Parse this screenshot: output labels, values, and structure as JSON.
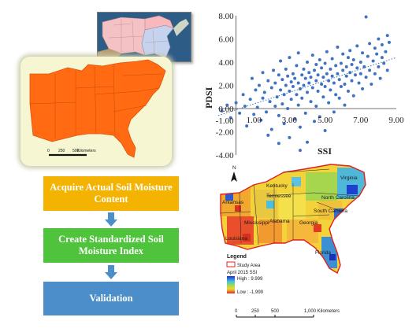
{
  "flow": {
    "step1": "Acquire Actual Soil Moisture Content",
    "step2": "Create Standardized Soil Moisture Index",
    "step3": "Validation",
    "colors": {
      "step1": "#f4b300",
      "step2": "#50c33c",
      "step3": "#4b8ec9",
      "arrow": "#4b8ec9"
    }
  },
  "region_map": {
    "scale_labels": [
      "0",
      "250",
      "500"
    ],
    "scale_unit": "Kilometers",
    "fill_color": "#ff6a12"
  },
  "ssi_map": {
    "state_labels": [
      "Kentucky",
      "Virginia",
      "Tennessee",
      "North Carolina",
      "Arkansas",
      "Mississippi",
      "Alabama",
      "Georgia",
      "South Carolina",
      "Louisiana",
      "Florida"
    ],
    "north_label": "N",
    "legend": {
      "title": "Legend",
      "study_area": "Study Area",
      "ssi_title": "April 2015 SSI",
      "high": "High : 9.999",
      "low": "Low : -1.999"
    },
    "scale": {
      "labels": [
        "0",
        "250",
        "500"
      ],
      "end": "1,000 Kilometers"
    }
  },
  "chart_data": {
    "type": "scatter",
    "xlabel": "SSI",
    "ylabel": "PDSI",
    "xlim": [
      -1.0,
      9.0
    ],
    "ylim": [
      -4.0,
      8.0
    ],
    "x_ticks": [
      "1.00",
      "3.00",
      "5.00",
      "7.00",
      "9.00"
    ],
    "x_tick_values": [
      1,
      3,
      5,
      7,
      9
    ],
    "y_ticks": [
      "8.00",
      "6.00",
      "4.00",
      "2.00",
      "0.00",
      "-1.00",
      "-2.00",
      "-4.00"
    ],
    "y_tick_values": [
      8,
      6,
      4,
      2,
      0,
      -1,
      -2,
      -4
    ],
    "trendline": {
      "style": "dotted",
      "x": [
        -1.0,
        9.0
      ],
      "y": [
        -0.6,
        4.4
      ]
    },
    "point_color": "#3f72c2",
    "points": [
      [
        -0.8,
        -0.2
      ],
      [
        -0.5,
        0.3
      ],
      [
        -0.3,
        -0.8
      ],
      [
        0.0,
        0.5
      ],
      [
        0.2,
        -0.4
      ],
      [
        0.4,
        1.2
      ],
      [
        0.5,
        0.2
      ],
      [
        0.6,
        -1.5
      ],
      [
        0.8,
        0.8
      ],
      [
        0.9,
        2.6
      ],
      [
        1.0,
        -0.5
      ],
      [
        1.1,
        1.6
      ],
      [
        1.2,
        0.1
      ],
      [
        1.3,
        2.0
      ],
      [
        1.4,
        -1.0
      ],
      [
        1.5,
        0.9
      ],
      [
        1.5,
        3.1
      ],
      [
        1.6,
        1.4
      ],
      [
        1.7,
        -0.3
      ],
      [
        1.8,
        2.4
      ],
      [
        1.9,
        0.6
      ],
      [
        2.0,
        1.8
      ],
      [
        2.0,
        -1.8
      ],
      [
        2.1,
        3.3
      ],
      [
        2.2,
        0.2
      ],
      [
        2.2,
        2.2
      ],
      [
        2.3,
        1.0
      ],
      [
        2.4,
        -0.6
      ],
      [
        2.4,
        2.9
      ],
      [
        2.5,
        1.6
      ],
      [
        2.5,
        4.1
      ],
      [
        2.6,
        0.4
      ],
      [
        2.6,
        2.5
      ],
      [
        2.7,
        -1.3
      ],
      [
        2.7,
        1.2
      ],
      [
        2.8,
        3.4
      ],
      [
        2.8,
        2.0
      ],
      [
        2.9,
        0.0
      ],
      [
        2.9,
        2.8
      ],
      [
        3.0,
        1.5
      ],
      [
        3.0,
        4.4
      ],
      [
        3.0,
        -2.5
      ],
      [
        3.1,
        2.3
      ],
      [
        3.1,
        0.8
      ],
      [
        3.2,
        3.0
      ],
      [
        3.2,
        1.9
      ],
      [
        3.3,
        -0.9
      ],
      [
        3.3,
        2.6
      ],
      [
        3.4,
        1.2
      ],
      [
        3.4,
        3.7
      ],
      [
        3.5,
        0.3
      ],
      [
        3.5,
        2.2
      ],
      [
        3.5,
        4.8
      ],
      [
        3.6,
        1.7
      ],
      [
        3.6,
        -1.6
      ],
      [
        3.7,
        2.9
      ],
      [
        3.7,
        0.9
      ],
      [
        3.8,
        3.4
      ],
      [
        3.8,
        2.0
      ],
      [
        3.9,
        -0.4
      ],
      [
        3.9,
        2.6
      ],
      [
        4.0,
        1.4
      ],
      [
        4.0,
        4.0
      ],
      [
        4.0,
        -2.9
      ],
      [
        4.1,
        2.2
      ],
      [
        4.1,
        3.1
      ],
      [
        4.2,
        0.6
      ],
      [
        4.2,
        2.7
      ],
      [
        4.3,
        1.8
      ],
      [
        4.3,
        4.6
      ],
      [
        4.4,
        -1.1
      ],
      [
        4.4,
        3.3
      ],
      [
        4.5,
        2.4
      ],
      [
        4.5,
        0.2
      ],
      [
        4.5,
        3.8
      ],
      [
        4.6,
        1.5
      ],
      [
        4.6,
        2.9
      ],
      [
        4.7,
        -0.7
      ],
      [
        4.7,
        4.2
      ],
      [
        4.8,
        2.1
      ],
      [
        4.8,
        3.5
      ],
      [
        4.9,
        1.0
      ],
      [
        4.9,
        2.7
      ],
      [
        5.0,
        3.9
      ],
      [
        5.0,
        -1.9
      ],
      [
        5.0,
        1.9
      ],
      [
        5.1,
        3.0
      ],
      [
        5.1,
        4.9
      ],
      [
        5.2,
        2.4
      ],
      [
        5.2,
        0.5
      ],
      [
        5.3,
        3.4
      ],
      [
        5.3,
        1.6
      ],
      [
        5.4,
        2.8
      ],
      [
        5.4,
        4.3
      ],
      [
        5.5,
        -0.3
      ],
      [
        5.5,
        2.2
      ],
      [
        5.6,
        3.7
      ],
      [
        5.6,
        1.2
      ],
      [
        5.7,
        3.0
      ],
      [
        5.7,
        5.3
      ],
      [
        5.8,
        2.5
      ],
      [
        5.8,
        0.9
      ],
      [
        5.9,
        3.9
      ],
      [
        5.9,
        1.9
      ],
      [
        6.0,
        3.3
      ],
      [
        6.0,
        4.7
      ],
      [
        6.1,
        2.1
      ],
      [
        6.1,
        0.3
      ],
      [
        6.2,
        3.6
      ],
      [
        6.2,
        2.8
      ],
      [
        6.3,
        4.4
      ],
      [
        6.3,
        1.5
      ],
      [
        6.4,
        3.1
      ],
      [
        6.4,
        5.0
      ],
      [
        6.5,
        2.4
      ],
      [
        6.5,
        3.8
      ],
      [
        6.6,
        1.1
      ],
      [
        6.6,
        4.2
      ],
      [
        6.7,
        2.9
      ],
      [
        6.8,
        3.5
      ],
      [
        6.8,
        5.4
      ],
      [
        6.9,
        2.2
      ],
      [
        7.0,
        4.0
      ],
      [
        7.0,
        3.0
      ],
      [
        7.1,
        4.8
      ],
      [
        7.1,
        1.7
      ],
      [
        7.2,
        3.6
      ],
      [
        7.3,
        7.9
      ],
      [
        7.3,
        2.7
      ],
      [
        7.4,
        4.5
      ],
      [
        7.5,
        3.3
      ],
      [
        7.5,
        5.6
      ],
      [
        7.6,
        2.1
      ],
      [
        7.7,
        4.1
      ],
      [
        7.8,
        3.0
      ],
      [
        7.8,
        5.2
      ],
      [
        7.9,
        4.7
      ],
      [
        8.0,
        3.6
      ],
      [
        8.0,
        6.0
      ],
      [
        8.1,
        2.6
      ],
      [
        8.2,
        4.4
      ],
      [
        8.2,
        5.5
      ],
      [
        8.3,
        3.9
      ],
      [
        8.4,
        4.9
      ],
      [
        8.5,
        6.3
      ],
      [
        8.5,
        3.3
      ],
      [
        8.6,
        5.7
      ],
      [
        2.4,
        -3.0
      ],
      [
        3.6,
        -3.6
      ],
      [
        1.8,
        -2.3
      ]
    ]
  }
}
